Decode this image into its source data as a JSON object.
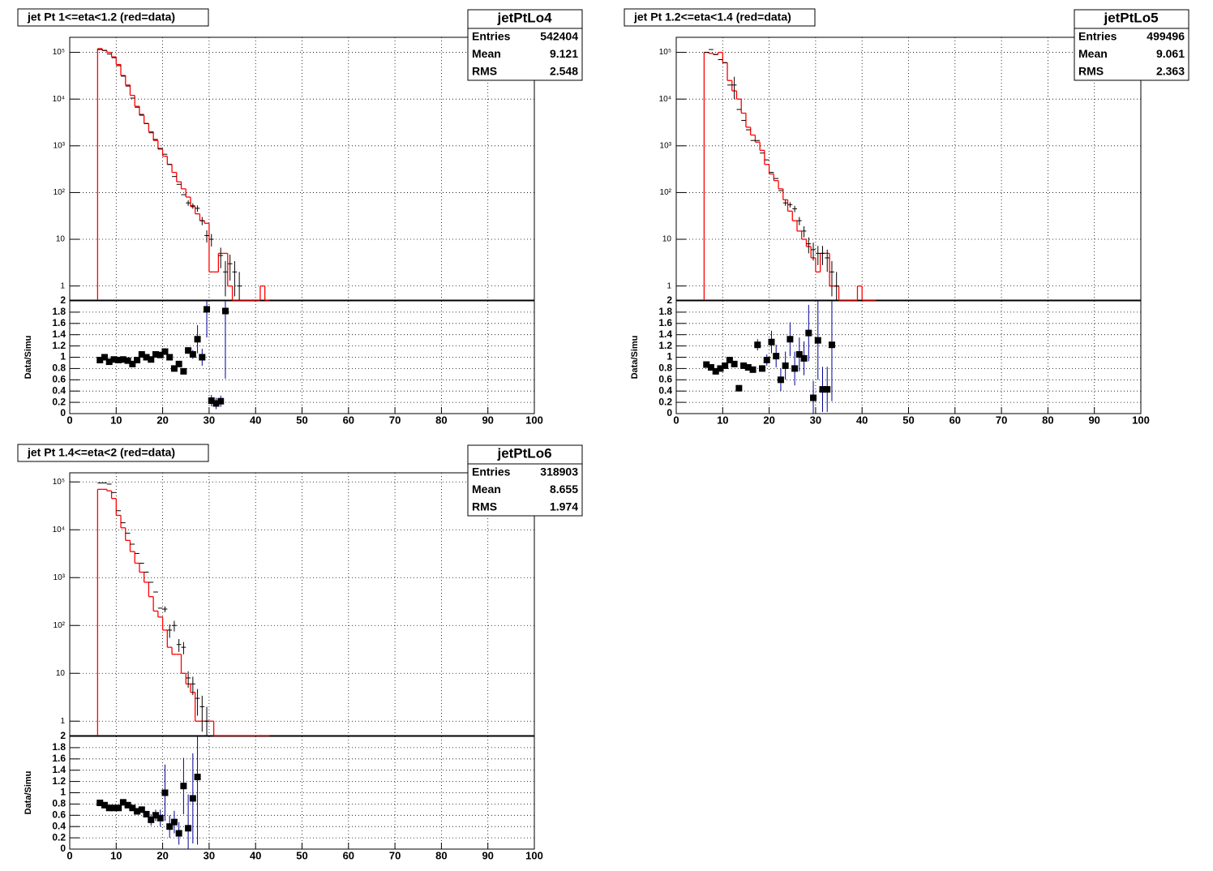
{
  "chart_data": [
    {
      "type": "histogram",
      "title": "jet Pt 1<=eta<1.2 (red=data)",
      "stats": {
        "name": "jetPtLo4",
        "rows": [
          {
            "label": "Entries",
            "value": 542404
          },
          {
            "label": "Mean",
            "value": 9.121
          },
          {
            "label": "RMS",
            "value": 2.548
          }
        ]
      },
      "bins": [
        6,
        7,
        8,
        9,
        10,
        11,
        12,
        13,
        14,
        15,
        16,
        17,
        18,
        19,
        20,
        21,
        22,
        23,
        24,
        25,
        26,
        27,
        28,
        29,
        30,
        31,
        32,
        33,
        34,
        35,
        36,
        37,
        38,
        39,
        40,
        41,
        42,
        43
      ],
      "series": [
        {
          "color": "#ff0000",
          "values": [
            120000,
            110000,
            100000,
            80000,
            55000,
            32000,
            20000,
            12000,
            7000,
            4500,
            3000,
            2000,
            1300,
            850,
            600,
            400,
            270,
            170,
            120,
            80,
            50,
            35,
            25,
            22,
            2,
            2,
            5,
            5,
            1,
            0,
            0,
            0,
            0,
            0,
            0,
            1,
            0
          ]
        },
        {
          "color": "#000000",
          "values": [
            115000,
            110000,
            92000,
            77000,
            52000,
            31000,
            19000,
            10500,
            6700,
            4700,
            3000,
            1900,
            1370,
            880,
            660,
            400,
            220,
            150,
            90,
            60,
            52,
            46,
            25,
            12,
            10,
            null,
            4.5,
            2,
            3,
            2,
            1,
            null,
            null,
            null,
            null,
            null,
            null
          ],
          "errors": [
            null,
            null,
            null,
            null,
            null,
            null,
            null,
            null,
            null,
            null,
            null,
            null,
            null,
            null,
            null,
            null,
            null,
            null,
            null,
            8,
            7,
            7,
            5,
            3.5,
            3,
            null,
            2.1,
            1.4,
            1.7,
            1.4,
            1,
            null,
            null,
            null,
            null,
            null,
            null
          ]
        }
      ],
      "xlim": [
        0,
        100
      ],
      "xticks": [
        0,
        10,
        20,
        30,
        40,
        50,
        60,
        70,
        80,
        90,
        100
      ],
      "log_y": true,
      "ylim": [
        0.5,
        210000
      ],
      "yticks": [
        1,
        10,
        {
          "value": 100,
          "label": "10²"
        },
        {
          "value": 1000,
          "label": "10³"
        },
        {
          "value": 10000,
          "label": "10⁴"
        },
        {
          "value": 100000,
          "label": "10⁵"
        }
      ],
      "grid": true,
      "ratio": {
        "ylabel": "Data/Simu",
        "ylim": [
          0,
          2
        ],
        "yticks": [
          0,
          0.2,
          0.4,
          0.6,
          0.8,
          1,
          1.2,
          1.4,
          1.6,
          1.8,
          2
        ],
        "color": "#000000",
        "error_color": "#000099",
        "values": [
          0.95,
          1.0,
          0.92,
          0.96,
          0.95,
          0.96,
          0.94,
          0.88,
          0.95,
          1.05,
          1.0,
          0.96,
          1.05,
          1.04,
          1.1,
          1.0,
          0.8,
          0.88,
          0.75,
          1.12,
          1.05,
          1.32,
          1.0,
          1.85,
          0.23,
          0.18,
          0.22,
          1.82,
          null,
          null,
          null,
          null,
          null,
          null,
          null,
          null,
          null
        ],
        "errors": [
          0.03,
          0.03,
          0.03,
          0.03,
          0.03,
          0.03,
          0.03,
          0.03,
          0.03,
          0.03,
          0.03,
          0.03,
          0.03,
          0.03,
          0.03,
          0.03,
          0.03,
          0.03,
          0.05,
          0.06,
          0.08,
          0.25,
          0.15,
          0.5,
          0.1,
          0.1,
          0.1,
          1.2,
          null,
          null,
          null,
          null,
          null,
          null,
          null,
          null,
          null
        ]
      }
    },
    {
      "type": "histogram",
      "title": "jet Pt 1.2<=eta<1.4 (red=data)",
      "stats": {
        "name": "jetPtLo5",
        "rows": [
          {
            "label": "Entries",
            "value": 499496
          },
          {
            "label": "Mean",
            "value": 9.061
          },
          {
            "label": "RMS",
            "value": 2.363
          }
        ]
      },
      "bins": [
        6,
        7,
        8,
        9,
        10,
        11,
        12,
        13,
        14,
        15,
        16,
        17,
        18,
        19,
        20,
        21,
        22,
        23,
        24,
        25,
        26,
        27,
        28,
        29,
        30,
        31,
        32,
        33,
        34,
        35,
        36,
        37,
        38,
        39,
        40,
        41,
        42,
        43
      ],
      "series": [
        {
          "color": "#ff0000",
          "values": [
            100000,
            95000,
            90000,
            100000,
            60000,
            25000,
            15000,
            10000,
            5000,
            2500,
            1700,
            1200,
            800,
            400,
            250,
            180,
            120,
            70,
            40,
            25,
            15,
            10,
            7,
            4,
            2,
            5,
            5,
            1,
            1,
            0,
            0,
            0,
            0,
            1,
            0,
            0,
            0
          ]
        },
        {
          "color": "#000000",
          "values": [
            100000,
            115000,
            90000,
            70000,
            60000,
            20000,
            20000,
            6000,
            3500,
            2200,
            1300,
            1300,
            700,
            500,
            270,
            200,
            110,
            60,
            55,
            45,
            25,
            15,
            8,
            6,
            5,
            5,
            4,
            2,
            1,
            null,
            null,
            null,
            null,
            null,
            null,
            null,
            null
          ],
          "errors": [
            null,
            null,
            null,
            null,
            null,
            null,
            10000,
            null,
            null,
            null,
            null,
            null,
            null,
            null,
            null,
            null,
            null,
            8,
            7,
            7,
            5,
            4,
            3,
            2.5,
            2.2,
            2.2,
            2,
            1.4,
            1,
            null,
            null,
            null,
            null,
            null,
            null,
            null,
            null
          ]
        }
      ],
      "xlim": [
        0,
        100
      ],
      "xticks": [
        0,
        10,
        20,
        30,
        40,
        50,
        60,
        70,
        80,
        90,
        100
      ],
      "log_y": true,
      "ylim": [
        0.5,
        210000
      ],
      "yticks": [
        1,
        10,
        {
          "value": 100,
          "label": "10²"
        },
        {
          "value": 1000,
          "label": "10³"
        },
        {
          "value": 10000,
          "label": "10⁴"
        },
        {
          "value": 100000,
          "label": "10⁵"
        }
      ],
      "grid": true,
      "ratio": {
        "ylabel": "Data/Simu",
        "ylim": [
          0,
          2
        ],
        "yticks": [
          0,
          0.2,
          0.4,
          0.6,
          0.8,
          1,
          1.2,
          1.4,
          1.6,
          1.8,
          2
        ],
        "color": "#000000",
        "error_color": "#000099",
        "values": [
          0.87,
          0.82,
          0.75,
          0.8,
          0.85,
          0.95,
          0.88,
          0.45,
          0.85,
          0.82,
          0.78,
          1.22,
          0.8,
          0.95,
          1.27,
          1.02,
          0.6,
          0.85,
          1.32,
          0.8,
          1.05,
          0.98,
          1.43,
          0.28,
          1.3,
          0.43,
          0.43,
          1.22,
          null,
          null,
          null,
          null,
          null,
          null,
          null,
          null,
          null
        ],
        "errors": [
          0.03,
          0.03,
          0.03,
          0.03,
          0.03,
          0.03,
          0.03,
          0.03,
          0.03,
          0.03,
          0.03,
          0.1,
          0.05,
          0.1,
          0.2,
          0.2,
          0.2,
          0.25,
          0.3,
          0.3,
          0.3,
          0.3,
          0.5,
          0.3,
          0.7,
          0.4,
          0.4,
          1.0,
          null,
          null,
          null,
          null,
          null,
          null,
          null,
          null,
          null
        ]
      }
    },
    {
      "type": "histogram",
      "title": "jet Pt 1.4<=eta<2 (red=data)",
      "stats": {
        "name": "jetPtLo6",
        "rows": [
          {
            "label": "Entries",
            "value": 318903
          },
          {
            "label": "Mean",
            "value": 8.655
          },
          {
            "label": "RMS",
            "value": 1.974
          }
        ]
      },
      "bins": [
        6,
        7,
        8,
        9,
        10,
        11,
        12,
        13,
        14,
        15,
        16,
        17,
        18,
        19,
        20,
        21,
        22,
        23,
        24,
        25,
        26,
        27,
        28,
        29,
        30,
        31,
        32,
        33,
        34,
        35,
        36,
        37,
        38,
        39,
        40,
        41,
        42,
        43
      ],
      "series": [
        {
          "color": "#ff0000",
          "values": [
            70000,
            70000,
            65000,
            45000,
            20000,
            11000,
            6000,
            3500,
            2000,
            1300,
            800,
            400,
            200,
            150,
            80,
            35,
            25,
            25,
            10,
            6,
            4,
            1,
            1,
            1,
            1,
            0,
            0,
            0,
            0,
            0,
            0,
            0,
            0,
            0,
            0,
            0,
            0
          ]
        },
        {
          "color": "#000000",
          "values": [
            95000,
            95000,
            90000,
            60000,
            25000,
            14000,
            8500,
            5000,
            3200,
            2000,
            1300,
            800,
            500,
            230,
            220,
            80,
            100,
            40,
            35,
            8,
            6,
            3,
            2,
            1,
            null,
            null,
            null,
            null,
            null,
            null,
            null,
            null,
            null,
            null,
            null,
            null,
            null
          ],
          "errors": [
            null,
            null,
            null,
            null,
            null,
            null,
            null,
            null,
            null,
            null,
            null,
            null,
            null,
            null,
            30,
            25,
            25,
            12,
            10,
            3,
            2.5,
            1.7,
            1.4,
            1,
            null,
            null,
            null,
            null,
            null,
            null,
            null,
            null,
            null,
            null,
            null,
            null,
            null
          ]
        }
      ],
      "xlim": [
        0,
        100
      ],
      "xticks": [
        0,
        10,
        20,
        30,
        40,
        50,
        60,
        70,
        80,
        90,
        100
      ],
      "log_y": true,
      "ylim": [
        0.5,
        155000
      ],
      "yticks": [
        1,
        10,
        {
          "value": 100,
          "label": "10²"
        },
        {
          "value": 1000,
          "label": "10³"
        },
        {
          "value": 10000,
          "label": "10⁴"
        },
        {
          "value": 100000,
          "label": "10⁵"
        }
      ],
      "grid": true,
      "ratio": {
        "ylabel": "Data/Simu",
        "ylim": [
          0,
          2
        ],
        "yticks": [
          0,
          0.2,
          0.4,
          0.6,
          0.8,
          1,
          1.2,
          1.4,
          1.6,
          1.8,
          2
        ],
        "color": "#000000",
        "error_color": "#000099",
        "values": [
          0.82,
          0.78,
          0.73,
          0.73,
          0.73,
          0.83,
          0.78,
          0.73,
          0.67,
          0.7,
          0.62,
          0.52,
          0.6,
          0.55,
          1.0,
          0.4,
          0.48,
          0.28,
          1.12,
          0.37,
          0.9,
          1.28,
          null,
          null,
          null,
          null,
          null,
          null,
          null,
          null,
          null,
          null,
          null,
          null,
          null,
          null,
          null
        ],
        "errors": [
          0.03,
          0.03,
          0.03,
          0.03,
          0.03,
          0.03,
          0.03,
          0.03,
          0.03,
          0.03,
          0.03,
          0.1,
          0.1,
          0.15,
          0.5,
          0.2,
          0.2,
          0.2,
          0.5,
          0.6,
          0.8,
          1.2,
          null,
          null,
          null,
          null,
          null,
          null,
          null,
          null,
          null,
          null,
          null,
          null,
          null,
          null,
          null
        ]
      }
    }
  ]
}
